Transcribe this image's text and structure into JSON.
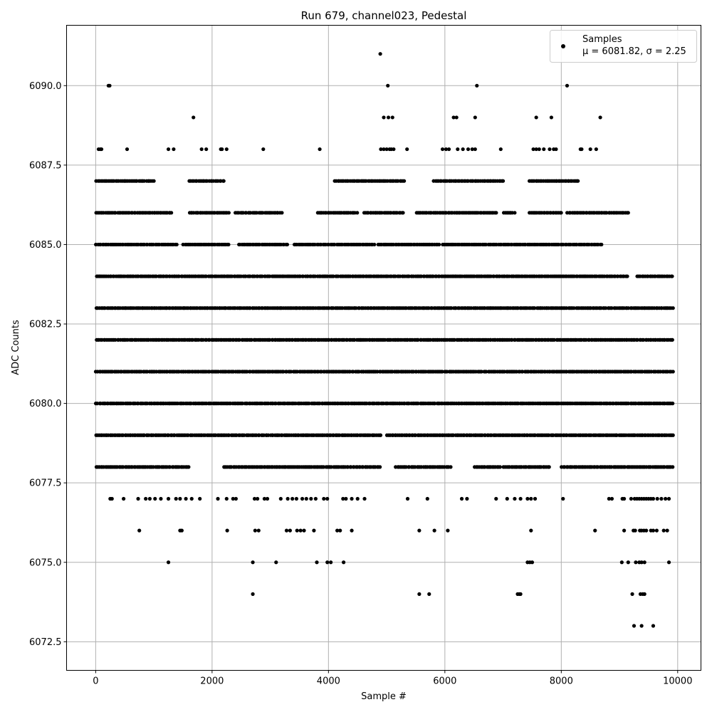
{
  "chart_data": {
    "type": "scatter",
    "title": "Run 679, channel023, Pedestal",
    "xlabel": "Sample #",
    "ylabel": "ADC Counts",
    "xlim": [
      -500,
      10400
    ],
    "ylim": [
      6071.6,
      6091.9
    ],
    "xticks": [
      0,
      2000,
      4000,
      6000,
      8000,
      10000
    ],
    "xtick_labels": [
      "0",
      "2000",
      "4000",
      "6000",
      "8000",
      "10000"
    ],
    "yticks": [
      6072.5,
      6075.0,
      6077.5,
      6080.0,
      6082.5,
      6085.0,
      6087.5,
      6090.0
    ],
    "ytick_labels": [
      "6072.5",
      "6075.0",
      "6077.5",
      "6080.0",
      "6082.5",
      "6085.0",
      "6087.5",
      "6090.0"
    ],
    "grid": true,
    "legend_position": "top-right",
    "legend": {
      "line1": "Samples",
      "line2": "μ = 6081.82, σ = 2.25"
    },
    "marker_color": "#000000",
    "bands": [
      {
        "y": 6083,
        "ranges": [
          [
            0,
            9920
          ]
        ]
      },
      {
        "y": 6082,
        "ranges": [
          [
            0,
            9920
          ]
        ]
      },
      {
        "y": 6081,
        "ranges": [
          [
            0,
            9920
          ]
        ]
      },
      {
        "y": 6084,
        "ranges": [
          [
            0,
            9150
          ],
          [
            9300,
            9920
          ]
        ]
      },
      {
        "y": 6080,
        "ranges": [
          [
            0,
            9920
          ]
        ]
      },
      {
        "y": 6085,
        "ranges": [
          [
            0,
            1400
          ],
          [
            1500,
            2300
          ],
          [
            2450,
            3300
          ],
          [
            3400,
            4800
          ],
          [
            4850,
            5900
          ],
          [
            5950,
            8700
          ]
        ]
      },
      {
        "y": 6079,
        "ranges": [
          [
            0,
            4900
          ],
          [
            5000,
            9920
          ]
        ]
      },
      {
        "y": 6086,
        "ranges": [
          [
            0,
            1300
          ],
          [
            1600,
            2300
          ],
          [
            2400,
            3200
          ],
          [
            3800,
            4500
          ],
          [
            4600,
            5300
          ],
          [
            5500,
            6900
          ],
          [
            7000,
            7200
          ],
          [
            7450,
            8000
          ],
          [
            8100,
            9150
          ]
        ]
      },
      {
        "y": 6078,
        "ranges": [
          [
            0,
            1600
          ],
          [
            2200,
            4900
          ],
          [
            5150,
            6100
          ],
          [
            6500,
            6950
          ],
          [
            7000,
            7800
          ],
          [
            8000,
            9920
          ]
        ]
      },
      {
        "y": 6087,
        "ranges": [
          [
            0,
            1000
          ],
          [
            1600,
            2200
          ],
          [
            4100,
            5300
          ],
          [
            5800,
            7000
          ],
          [
            7450,
            8300
          ]
        ]
      }
    ],
    "points": [
      [
        220,
        6090
      ],
      [
        240,
        6090
      ],
      [
        1680,
        6089
      ],
      [
        4890,
        6091
      ],
      [
        5020,
        6090
      ],
      [
        6550,
        6090
      ],
      [
        8100,
        6090
      ],
      [
        4950,
        6089
      ],
      [
        5030,
        6089
      ],
      [
        5100,
        6089
      ],
      [
        6150,
        6089
      ],
      [
        6200,
        6089
      ],
      [
        6520,
        6089
      ],
      [
        7570,
        6089
      ],
      [
        7830,
        6089
      ],
      [
        8670,
        6089
      ],
      [
        50,
        6088
      ],
      [
        80,
        6088
      ],
      [
        100,
        6088
      ],
      [
        540,
        6088
      ],
      [
        1250,
        6088
      ],
      [
        1340,
        6088
      ],
      [
        1820,
        6088
      ],
      [
        1900,
        6088
      ],
      [
        2150,
        6088
      ],
      [
        2170,
        6088
      ],
      [
        2250,
        6088
      ],
      [
        2880,
        6088
      ],
      [
        3850,
        6088
      ],
      [
        4900,
        6088
      ],
      [
        4950,
        6088
      ],
      [
        5000,
        6088
      ],
      [
        5050,
        6088
      ],
      [
        5080,
        6088
      ],
      [
        5120,
        6088
      ],
      [
        5350,
        6088
      ],
      [
        5960,
        6088
      ],
      [
        6020,
        6088
      ],
      [
        6070,
        6088
      ],
      [
        6220,
        6088
      ],
      [
        6310,
        6088
      ],
      [
        6400,
        6088
      ],
      [
        6470,
        6088
      ],
      [
        6520,
        6088
      ],
      [
        6960,
        6088
      ],
      [
        7520,
        6088
      ],
      [
        7570,
        6088
      ],
      [
        7620,
        6088
      ],
      [
        7700,
        6088
      ],
      [
        7800,
        6088
      ],
      [
        7870,
        6088
      ],
      [
        7910,
        6088
      ],
      [
        8330,
        6088
      ],
      [
        8350,
        6088
      ],
      [
        8500,
        6088
      ],
      [
        8600,
        6088
      ],
      [
        250,
        6077
      ],
      [
        280,
        6077
      ],
      [
        480,
        6077
      ],
      [
        730,
        6077
      ],
      [
        860,
        6077
      ],
      [
        930,
        6077
      ],
      [
        1020,
        6077
      ],
      [
        1120,
        6077
      ],
      [
        1250,
        6077
      ],
      [
        1380,
        6077
      ],
      [
        1450,
        6077
      ],
      [
        1550,
        6077
      ],
      [
        1650,
        6077
      ],
      [
        1790,
        6077
      ],
      [
        2100,
        6077
      ],
      [
        2250,
        6077
      ],
      [
        2360,
        6077
      ],
      [
        2410,
        6077
      ],
      [
        2730,
        6077
      ],
      [
        2780,
        6077
      ],
      [
        2900,
        6077
      ],
      [
        2950,
        6077
      ],
      [
        3180,
        6077
      ],
      [
        3300,
        6077
      ],
      [
        3380,
        6077
      ],
      [
        3450,
        6077
      ],
      [
        3550,
        6077
      ],
      [
        3620,
        6077
      ],
      [
        3700,
        6077
      ],
      [
        3780,
        6077
      ],
      [
        3920,
        6077
      ],
      [
        3980,
        6077
      ],
      [
        4250,
        6077
      ],
      [
        4300,
        6077
      ],
      [
        4400,
        6077
      ],
      [
        4500,
        6077
      ],
      [
        4620,
        6077
      ],
      [
        5360,
        6077
      ],
      [
        5700,
        6077
      ],
      [
        6290,
        6077
      ],
      [
        6380,
        6077
      ],
      [
        6880,
        6077
      ],
      [
        7070,
        6077
      ],
      [
        7200,
        6077
      ],
      [
        7300,
        6077
      ],
      [
        7420,
        6077
      ],
      [
        7480,
        6077
      ],
      [
        7550,
        6077
      ],
      [
        8030,
        6077
      ],
      [
        8820,
        6077
      ],
      [
        8870,
        6077
      ],
      [
        9050,
        6077
      ],
      [
        9080,
        6077
      ],
      [
        9200,
        6077
      ],
      [
        9260,
        6077
      ],
      [
        9300,
        6077
      ],
      [
        9340,
        6077
      ],
      [
        9380,
        6077
      ],
      [
        9420,
        6077
      ],
      [
        9460,
        6077
      ],
      [
        9500,
        6077
      ],
      [
        9540,
        6077
      ],
      [
        9580,
        6077
      ],
      [
        9650,
        6077
      ],
      [
        9720,
        6077
      ],
      [
        9790,
        6077
      ],
      [
        9850,
        6077
      ],
      [
        750,
        6076
      ],
      [
        1450,
        6076
      ],
      [
        1480,
        6076
      ],
      [
        2260,
        6076
      ],
      [
        2740,
        6076
      ],
      [
        2800,
        6076
      ],
      [
        3280,
        6076
      ],
      [
        3340,
        6076
      ],
      [
        3460,
        6076
      ],
      [
        3520,
        6076
      ],
      [
        3580,
        6076
      ],
      [
        3750,
        6076
      ],
      [
        4150,
        6076
      ],
      [
        4200,
        6076
      ],
      [
        4400,
        6076
      ],
      [
        5560,
        6076
      ],
      [
        5820,
        6076
      ],
      [
        6050,
        6076
      ],
      [
        7480,
        6076
      ],
      [
        8580,
        6076
      ],
      [
        9080,
        6076
      ],
      [
        9240,
        6076
      ],
      [
        9270,
        6076
      ],
      [
        9350,
        6076
      ],
      [
        9380,
        6076
      ],
      [
        9420,
        6076
      ],
      [
        9460,
        6076
      ],
      [
        9540,
        6076
      ],
      [
        9580,
        6076
      ],
      [
        9640,
        6076
      ],
      [
        9760,
        6076
      ],
      [
        9820,
        6076
      ],
      [
        1250,
        6075
      ],
      [
        2700,
        6075
      ],
      [
        3100,
        6075
      ],
      [
        3800,
        6075
      ],
      [
        3980,
        6075
      ],
      [
        4040,
        6075
      ],
      [
        4260,
        6075
      ],
      [
        7420,
        6075
      ],
      [
        7460,
        6075
      ],
      [
        7500,
        6075
      ],
      [
        9040,
        6075
      ],
      [
        9150,
        6075
      ],
      [
        9280,
        6075
      ],
      [
        9340,
        6075
      ],
      [
        9380,
        6075
      ],
      [
        9430,
        6075
      ],
      [
        9850,
        6075
      ],
      [
        2700,
        6074
      ],
      [
        5560,
        6074
      ],
      [
        5730,
        6074
      ],
      [
        7250,
        6074
      ],
      [
        7280,
        6074
      ],
      [
        7300,
        6074
      ],
      [
        9220,
        6074
      ],
      [
        9360,
        6074
      ],
      [
        9400,
        6074
      ],
      [
        9430,
        6074
      ],
      [
        9250,
        6073
      ],
      [
        9380,
        6073
      ],
      [
        9580,
        6073
      ]
    ]
  }
}
